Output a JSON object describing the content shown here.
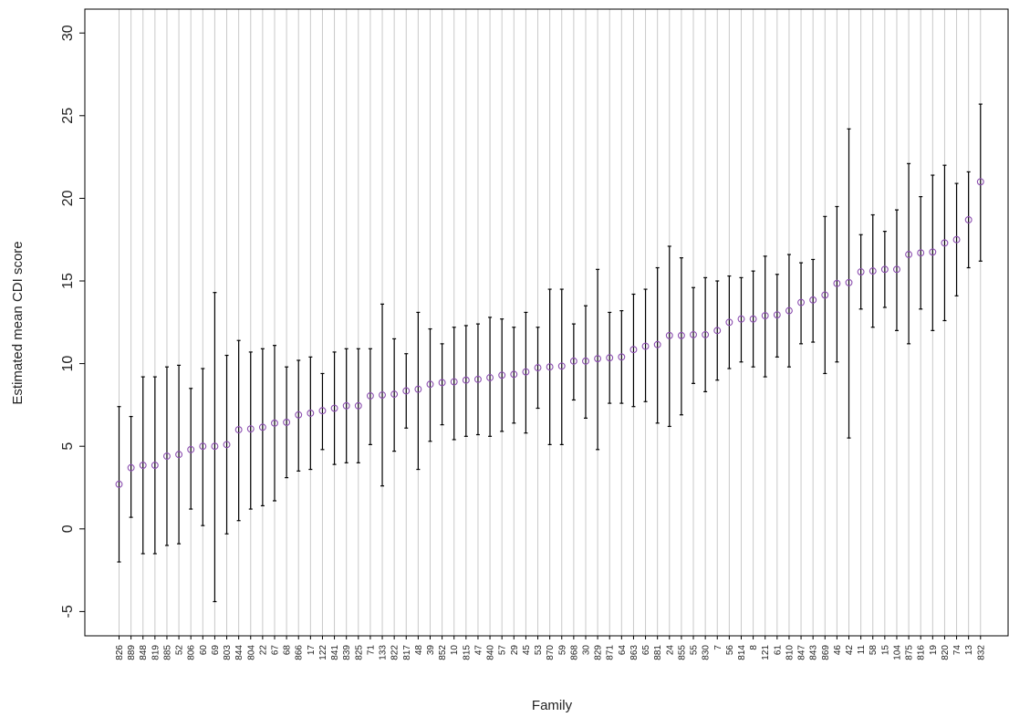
{
  "chart_data": {
    "type": "scatter",
    "title": "",
    "xlabel": "Family",
    "ylabel": "Estimated mean CDI score",
    "ylim": [
      -6,
      31
    ],
    "yticks": [
      -5,
      0,
      5,
      10,
      15,
      20,
      25,
      30
    ],
    "grid": "vertical lines at each family",
    "colors": {
      "point": "#8c4fb0",
      "errorbar": "#000000",
      "grid": "#c9c9c9"
    },
    "categories": [
      "826",
      "889",
      "848",
      "819",
      "885",
      "52",
      "806",
      "60",
      "69",
      "803",
      "844",
      "804",
      "22",
      "67",
      "68",
      "866",
      "17",
      "122",
      "841",
      "839",
      "825",
      "71",
      "133",
      "822",
      "817",
      "48",
      "39",
      "852",
      "10",
      "815",
      "47",
      "840",
      "57",
      "29",
      "45",
      "53",
      "870",
      "59",
      "868",
      "30",
      "829",
      "871",
      "64",
      "863",
      "65",
      "881",
      "24",
      "855",
      "55",
      "830",
      "7",
      "56",
      "814",
      "8",
      "121",
      "61",
      "810",
      "847",
      "843",
      "869",
      "46",
      "42",
      "11",
      "58",
      "15",
      "104",
      "875",
      "816",
      "19",
      "820",
      "74",
      "13",
      "832"
    ],
    "values": [
      2.7,
      3.7,
      3.85,
      3.85,
      4.4,
      4.5,
      4.8,
      5.0,
      5.0,
      5.1,
      6.0,
      6.05,
      6.15,
      6.4,
      6.45,
      6.9,
      7.0,
      7.15,
      7.3,
      7.45,
      7.45,
      8.05,
      8.1,
      8.15,
      8.35,
      8.45,
      8.75,
      8.85,
      8.9,
      9.0,
      9.05,
      9.15,
      9.3,
      9.35,
      9.5,
      9.75,
      9.8,
      9.85,
      10.15,
      10.15,
      10.3,
      10.35,
      10.4,
      10.85,
      11.05,
      11.15,
      11.7,
      11.7,
      11.75,
      11.75,
      12.0,
      12.5,
      12.7,
      12.7,
      12.9,
      12.95,
      13.2,
      13.7,
      13.85,
      14.15,
      14.85,
      14.9,
      15.55,
      15.6,
      15.7,
      15.7,
      16.6,
      16.7,
      16.75,
      17.3,
      17.5,
      18.7,
      21.0
    ],
    "lower": [
      -2.0,
      0.7,
      -1.5,
      -1.5,
      -1.0,
      -0.9,
      1.2,
      0.2,
      -4.4,
      -0.3,
      0.5,
      1.2,
      1.4,
      1.7,
      3.1,
      3.5,
      3.6,
      4.8,
      3.9,
      4.0,
      4.0,
      5.1,
      2.6,
      4.7,
      6.1,
      3.6,
      5.3,
      6.3,
      5.4,
      5.6,
      5.7,
      5.6,
      5.9,
      6.4,
      5.8,
      7.3,
      5.1,
      5.1,
      7.8,
      6.7,
      4.8,
      7.6,
      7.6,
      7.4,
      7.7,
      6.4,
      6.2,
      6.9,
      8.8,
      8.3,
      9.0,
      9.7,
      10.1,
      9.8,
      9.2,
      10.4,
      9.8,
      11.2,
      11.3,
      9.4,
      10.1,
      5.5,
      13.3,
      12.2,
      13.4,
      12.0,
      11.2,
      13.3,
      12.0,
      12.6,
      14.1,
      15.8,
      16.2
    ],
    "upper": [
      7.4,
      6.8,
      9.2,
      9.2,
      9.8,
      9.9,
      8.5,
      9.7,
      14.3,
      10.5,
      11.4,
      10.7,
      10.9,
      11.1,
      9.8,
      10.2,
      10.4,
      9.4,
      10.7,
      10.9,
      10.9,
      10.9,
      13.6,
      11.5,
      10.6,
      13.1,
      12.1,
      11.2,
      12.2,
      12.3,
      12.4,
      12.8,
      12.7,
      12.2,
      13.1,
      12.2,
      14.5,
      14.5,
      12.4,
      13.5,
      15.7,
      13.1,
      13.2,
      14.2,
      14.5,
      15.8,
      17.1,
      16.4,
      14.6,
      15.2,
      15.0,
      15.3,
      15.2,
      15.6,
      16.5,
      15.4,
      16.6,
      16.1,
      16.3,
      18.9,
      19.5,
      24.2,
      17.8,
      19.0,
      18.0,
      19.3,
      22.1,
      20.1,
      21.4,
      22.0,
      20.9,
      21.6,
      25.7
    ]
  }
}
